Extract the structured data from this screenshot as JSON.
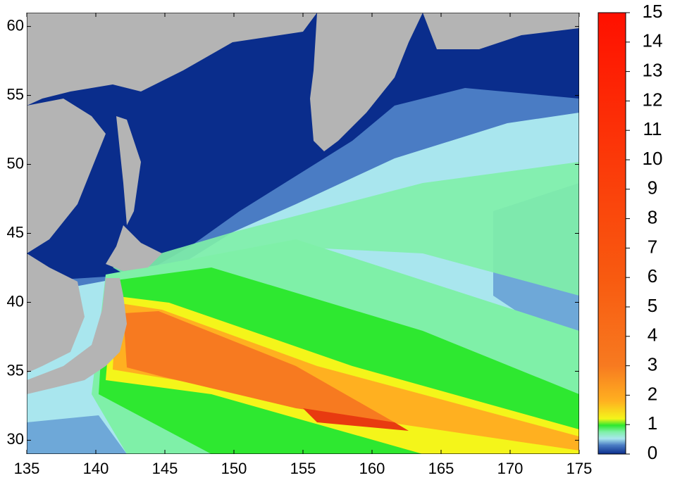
{
  "map": {
    "xlim": [
      135,
      175
    ],
    "xticks": [
      135,
      140,
      145,
      150,
      155,
      160,
      165,
      170,
      175
    ],
    "ylim": [
      29,
      61
    ],
    "yticks": [
      30,
      35,
      40,
      45,
      50,
      55,
      60
    ],
    "colorbar": {
      "lim": [
        0,
        15
      ],
      "ticks": [
        0,
        1,
        2,
        3,
        4,
        5,
        6,
        7,
        8,
        9,
        10,
        11,
        12,
        13,
        14,
        15
      ]
    }
  }
}
